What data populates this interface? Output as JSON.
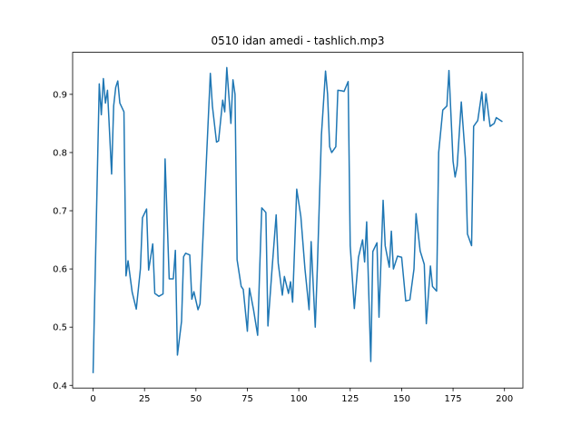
{
  "chart_data": {
    "type": "line",
    "title": "0510 idan amedi - tashlich.mp3",
    "x": [
      0,
      3,
      4,
      5,
      6,
      7,
      9,
      10,
      11,
      12,
      13,
      15,
      16,
      17,
      19,
      21,
      23,
      24,
      26,
      27,
      29,
      30,
      32,
      34,
      35,
      37,
      39,
      40,
      41,
      43,
      44,
      45,
      47,
      48,
      49,
      51,
      52,
      53,
      55,
      57,
      58,
      60,
      61,
      63,
      64,
      65,
      67,
      68,
      69,
      70,
      72,
      73,
      75,
      76,
      78,
      80,
      81,
      82,
      84,
      85,
      87,
      89,
      90,
      92,
      93,
      95,
      96,
      97,
      99,
      101,
      103,
      105,
      106,
      108,
      109,
      111,
      113,
      114,
      115,
      116,
      118,
      119,
      121,
      122,
      124,
      125,
      127,
      129,
      131,
      132,
      133,
      135,
      136,
      138,
      139,
      141,
      142,
      144,
      145,
      146,
      148,
      150,
      152,
      154,
      156,
      157,
      159,
      161,
      162,
      164,
      165,
      167,
      168,
      170,
      172,
      173,
      175,
      176,
      177,
      179,
      181,
      182,
      184,
      185,
      187,
      189,
      190,
      191,
      193,
      195,
      196,
      199
    ],
    "series": [
      {
        "color": "#1f77b4",
        "values": [
          0.421,
          0.918,
          0.865,
          0.927,
          0.885,
          0.907,
          0.763,
          0.88,
          0.912,
          0.923,
          0.885,
          0.87,
          0.588,
          0.614,
          0.56,
          0.531,
          0.6,
          0.688,
          0.703,
          0.598,
          0.643,
          0.558,
          0.553,
          0.557,
          0.789,
          0.583,
          0.583,
          0.632,
          0.452,
          0.51,
          0.621,
          0.627,
          0.624,
          0.548,
          0.561,
          0.53,
          0.54,
          0.62,
          0.78,
          0.936,
          0.88,
          0.818,
          0.82,
          0.89,
          0.87,
          0.946,
          0.85,
          0.925,
          0.9,
          0.616,
          0.57,
          0.565,
          0.493,
          0.567,
          0.53,
          0.486,
          0.6,
          0.705,
          0.697,
          0.502,
          0.6,
          0.693,
          0.61,
          0.555,
          0.587,
          0.558,
          0.578,
          0.543,
          0.737,
          0.69,
          0.6,
          0.53,
          0.647,
          0.5,
          0.6,
          0.83,
          0.94,
          0.9,
          0.81,
          0.8,
          0.81,
          0.907,
          0.906,
          0.905,
          0.922,
          0.64,
          0.532,
          0.62,
          0.65,
          0.612,
          0.681,
          0.441,
          0.63,
          0.645,
          0.517,
          0.718,
          0.64,
          0.603,
          0.665,
          0.6,
          0.622,
          0.62,
          0.545,
          0.547,
          0.6,
          0.695,
          0.631,
          0.608,
          0.506,
          0.605,
          0.57,
          0.562,
          0.8,
          0.873,
          0.88,
          0.941,
          0.785,
          0.758,
          0.777,
          0.887,
          0.79,
          0.66,
          0.64,
          0.845,
          0.855,
          0.904,
          0.855,
          0.901,
          0.845,
          0.85,
          0.86,
          0.853
        ]
      }
    ],
    "xlim": [
      -9.95,
      208.95
    ],
    "ylim": [
      0.3954,
      0.9722
    ],
    "xticks": [
      0,
      25,
      50,
      75,
      100,
      125,
      150,
      175,
      200
    ],
    "yticks": [
      0.4,
      0.5,
      0.6,
      0.7,
      0.8,
      0.9
    ]
  }
}
